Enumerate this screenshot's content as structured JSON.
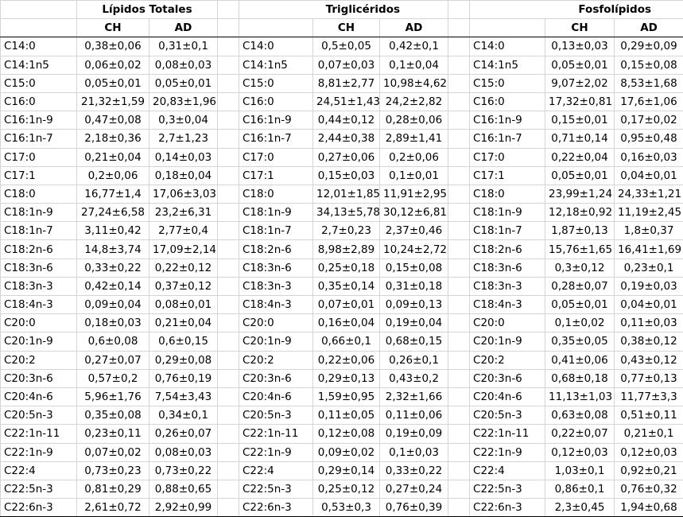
{
  "groups": [
    "Lípidos Totales",
    "Triglicéridos",
    "Fosfolípidos"
  ],
  "subheaders": [
    "CH",
    "AD"
  ],
  "rows": [
    {
      "name": "C14:0",
      "lt": [
        "0,38±0,06",
        "0,31±0,1"
      ],
      "tg": [
        "0,5±0,05",
        "0,42±0,1"
      ],
      "pl": [
        "0,13±0,03",
        "0,29±0,09"
      ]
    },
    {
      "name": "C14:1n5",
      "lt": [
        "0,06±0,02",
        "0,08±0,03"
      ],
      "tg": [
        "0,07±0,03",
        "0,1±0,04"
      ],
      "pl": [
        "0,05±0,01",
        "0,15±0,08"
      ]
    },
    {
      "name": "C15:0",
      "lt": [
        "0,05±0,01",
        "0,05±0,01"
      ],
      "tg": [
        "8,81±2,77",
        "10,98±4,62"
      ],
      "pl": [
        "9,07±2,02",
        "8,53±1,68"
      ]
    },
    {
      "name": "C16:0",
      "lt": [
        "21,32±1,59",
        "20,83±1,96"
      ],
      "tg": [
        "24,51±1,43",
        "24,2±2,82"
      ],
      "pl": [
        "17,32±0,81",
        "17,6±1,06"
      ]
    },
    {
      "name": "C16:1n-9",
      "lt": [
        "0,47±0,08",
        "0,3±0,04"
      ],
      "tg": [
        "0,44±0,12",
        "0,28±0,06"
      ],
      "pl": [
        "0,15±0,01",
        "0,17±0,02"
      ]
    },
    {
      "name": "C16:1n-7",
      "lt": [
        "2,18±0,36",
        "2,7±1,23"
      ],
      "tg": [
        "2,44±0,38",
        "2,89±1,41"
      ],
      "pl": [
        "0,71±0,14",
        "0,95±0,48"
      ]
    },
    {
      "name": "C17:0",
      "lt": [
        "0,21±0,04",
        "0,14±0,03"
      ],
      "tg": [
        "0,27±0,06",
        "0,2±0,06"
      ],
      "pl": [
        "0,22±0,04",
        "0,16±0,03"
      ]
    },
    {
      "name": "C17:1",
      "lt": [
        "0,2±0,06",
        "0,18±0,04"
      ],
      "tg": [
        "0,15±0,03",
        "0,1±0,01"
      ],
      "pl": [
        "0,05±0,01",
        "0,04±0,01"
      ]
    },
    {
      "name": "C18:0",
      "lt": [
        "16,77±1,4",
        "17,06±3,03"
      ],
      "tg": [
        "12,01±1,85",
        "11,91±2,95"
      ],
      "pl": [
        "23,99±1,24",
        "24,33±1,21"
      ]
    },
    {
      "name": "C18:1n-9",
      "lt": [
        "27,24±6,58",
        "23,2±6,31"
      ],
      "tg": [
        "34,13±5,78",
        "30,12±6,81"
      ],
      "pl": [
        "12,18±0,92",
        "11,19±2,45"
      ]
    },
    {
      "name": "C18:1n-7",
      "lt": [
        "3,11±0,42",
        "2,77±0,4"
      ],
      "tg": [
        "2,7±0,23",
        "2,37±0,46"
      ],
      "pl": [
        "1,87±0,13",
        "1,8±0,37"
      ]
    },
    {
      "name": "C18:2n-6",
      "lt": [
        "14,8±3,74",
        "17,09±2,14"
      ],
      "tg": [
        "8,98±2,89",
        "10,24±2,72"
      ],
      "pl": [
        "15,76±1,65",
        "16,41±1,69"
      ]
    },
    {
      "name": "C18:3n-6",
      "lt": [
        "0,33±0,22",
        "0,22±0,12"
      ],
      "tg": [
        "0,25±0,18",
        "0,15±0,08"
      ],
      "pl": [
        "0,3±0,12",
        "0,23±0,1"
      ]
    },
    {
      "name": "C18:3n-3",
      "lt": [
        "0,42±0,14",
        "0,37±0,12"
      ],
      "tg": [
        "0,35±0,14",
        "0,31±0,18"
      ],
      "pl": [
        "0,28±0,07",
        "0,19±0,03"
      ]
    },
    {
      "name": "C18:4n-3",
      "lt": [
        "0,09±0,04",
        "0,08±0,01"
      ],
      "tg": [
        "0,07±0,01",
        "0,09±0,13"
      ],
      "pl": [
        "0,05±0,01",
        "0,04±0,01"
      ]
    },
    {
      "name": "C20:0",
      "lt": [
        "0,18±0,03",
        "0,21±0,04"
      ],
      "tg": [
        "0,16±0,04",
        "0,19±0,04"
      ],
      "pl": [
        "0,1±0,02",
        "0,11±0,03"
      ]
    },
    {
      "name": "C20:1n-9",
      "lt": [
        "0,6±0,08",
        "0,6±0,15"
      ],
      "tg": [
        "0,66±0,1",
        "0,68±0,15"
      ],
      "pl": [
        "0,35±0,05",
        "0,38±0,12"
      ]
    },
    {
      "name": "C20:2",
      "lt": [
        "0,27±0,07",
        "0,29±0,08"
      ],
      "tg": [
        "0,22±0,06",
        "0,26±0,1"
      ],
      "pl": [
        "0,41±0,06",
        "0,43±0,12"
      ]
    },
    {
      "name": "C20:3n-6",
      "lt": [
        "0,57±0,2",
        "0,76±0,19"
      ],
      "tg": [
        "0,29±0,13",
        "0,43±0,2"
      ],
      "pl": [
        "0,68±0,18",
        "0,77±0,13"
      ]
    },
    {
      "name": "C20:4n-6",
      "lt": [
        "5,96±1,76",
        "7,54±3,43"
      ],
      "tg": [
        "1,59±0,95",
        "2,32±1,66"
      ],
      "pl": [
        "11,13±1,03",
        "11,77±3,3"
      ]
    },
    {
      "name": "C20:5n-3",
      "lt": [
        "0,35±0,08",
        "0,34±0,1"
      ],
      "tg": [
        "0,11±0,05",
        "0,11±0,06"
      ],
      "pl": [
        "0,63±0,08",
        "0,51±0,11"
      ]
    },
    {
      "name": "C22:1n-11",
      "lt": [
        "0,23±0,11",
        "0,26±0,07"
      ],
      "tg": [
        "0,12±0,08",
        "0,19±0,09"
      ],
      "pl": [
        "0,22±0,07",
        "0,21±0,1"
      ]
    },
    {
      "name": "C22:1n-9",
      "lt": [
        "0,07±0,02",
        "0,08±0,03"
      ],
      "tg": [
        "0,09±0,02",
        "0,1±0,03"
      ],
      "pl": [
        "0,12±0,03",
        "0,12±0,03"
      ]
    },
    {
      "name": "C22:4",
      "lt": [
        "0,73±0,23",
        "0,73±0,22"
      ],
      "tg": [
        "0,29±0,14",
        "0,33±0,22"
      ],
      "pl": [
        "1,03±0,1",
        "0,92±0,21"
      ]
    },
    {
      "name": "C22:5n-3",
      "lt": [
        "0,81±0,29",
        "0,88±0,65"
      ],
      "tg": [
        "0,25±0,12",
        "0,27±0,24"
      ],
      "pl": [
        "0,86±0,1",
        "0,76±0,32"
      ]
    },
    {
      "name": "C22:6n-3",
      "lt": [
        "2,61±0,72",
        "2,92±0,99"
      ],
      "tg": [
        "0,53±0,3",
        "0,76±0,39"
      ],
      "pl": [
        "2,3±0,45",
        "1,94±0,68"
      ]
    }
  ]
}
